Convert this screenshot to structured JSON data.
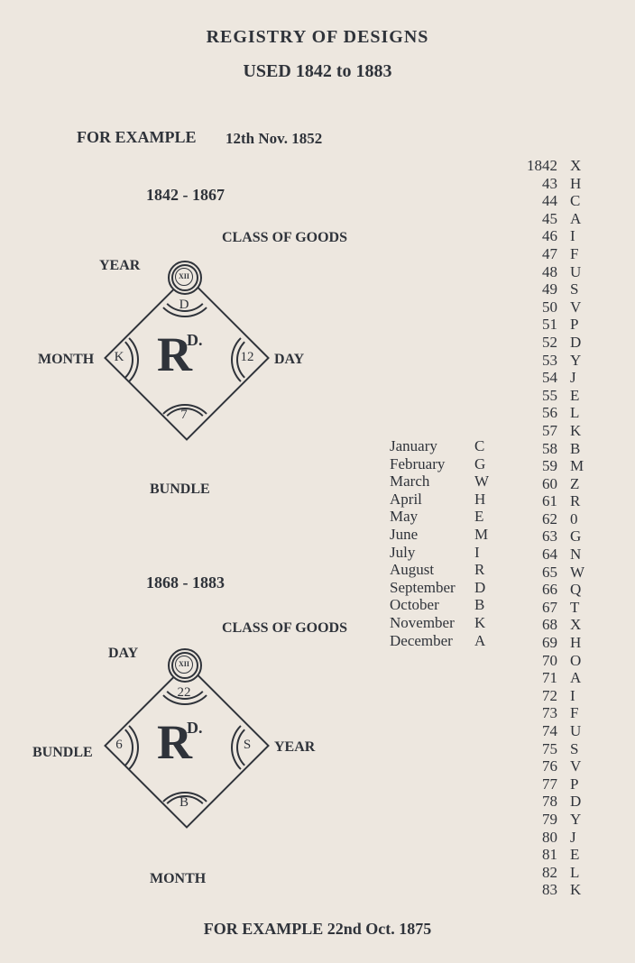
{
  "title1": "REGISTRY OF DESIGNS",
  "title2": "USED 1842 to 1883",
  "example_top_label": "FOR EXAMPLE",
  "example_top_date": "12th Nov. 1852",
  "period1": "1842 - 1867",
  "period2": "1868 - 1883",
  "example_bottom": "FOR EXAMPLE 22nd Oct. 1875",
  "diamond1": {
    "class_label": "CLASS OF GOODS",
    "top_label": "YEAR",
    "top_value": "D",
    "left_label": "MONTH",
    "left_value": "K",
    "right_label": "DAY",
    "right_value": "12",
    "bottom_label": "BUNDLE",
    "bottom_value": "7",
    "circle_value": "XII",
    "rd": "R",
    "rd_sup": "D."
  },
  "diamond2": {
    "class_label": "CLASS OF GOODS",
    "top_label": "DAY",
    "top_value": "22",
    "left_label": "BUNDLE",
    "left_value": "6",
    "right_label": "YEAR",
    "right_value": "S",
    "bottom_label": "MONTH",
    "bottom_value": "B",
    "circle_value": "XII",
    "rd": "R",
    "rd_sup": "D."
  },
  "months": [
    {
      "m": "January",
      "c": "C"
    },
    {
      "m": "February",
      "c": "G"
    },
    {
      "m": "March",
      "c": "W"
    },
    {
      "m": "April",
      "c": "H"
    },
    {
      "m": "May",
      "c": "E"
    },
    {
      "m": "June",
      "c": "M"
    },
    {
      "m": "July",
      "c": "I"
    },
    {
      "m": "August",
      "c": "R"
    },
    {
      "m": "September",
      "c": "D"
    },
    {
      "m": "October",
      "c": "B"
    },
    {
      "m": "November",
      "c": "K"
    },
    {
      "m": "December",
      "c": "A"
    }
  ],
  "years": [
    {
      "y": "1842",
      "c": "X"
    },
    {
      "y": "43",
      "c": "H"
    },
    {
      "y": "44",
      "c": "C"
    },
    {
      "y": "45",
      "c": "A"
    },
    {
      "y": "46",
      "c": "I"
    },
    {
      "y": "47",
      "c": "F"
    },
    {
      "y": "48",
      "c": "U"
    },
    {
      "y": "49",
      "c": "S"
    },
    {
      "y": "50",
      "c": "V"
    },
    {
      "y": "51",
      "c": "P"
    },
    {
      "y": "52",
      "c": "D"
    },
    {
      "y": "53",
      "c": "Y"
    },
    {
      "y": "54",
      "c": "J"
    },
    {
      "y": "55",
      "c": "E"
    },
    {
      "y": "56",
      "c": "L"
    },
    {
      "y": "57",
      "c": "K"
    },
    {
      "y": "58",
      "c": "B"
    },
    {
      "y": "59",
      "c": "M"
    },
    {
      "y": "60",
      "c": "Z"
    },
    {
      "y": "61",
      "c": "R"
    },
    {
      "y": "62",
      "c": "0"
    },
    {
      "y": "63",
      "c": "G"
    },
    {
      "y": "64",
      "c": "N"
    },
    {
      "y": "65",
      "c": "W"
    },
    {
      "y": "66",
      "c": "Q"
    },
    {
      "y": "67",
      "c": "T"
    },
    {
      "y": "68",
      "c": "X"
    },
    {
      "y": "69",
      "c": "H"
    },
    {
      "y": "70",
      "c": "O"
    },
    {
      "y": "71",
      "c": "A"
    },
    {
      "y": "72",
      "c": "I"
    },
    {
      "y": "73",
      "c": "F"
    },
    {
      "y": "74",
      "c": "U"
    },
    {
      "y": "75",
      "c": "S"
    },
    {
      "y": "76",
      "c": "V"
    },
    {
      "y": "77",
      "c": "P"
    },
    {
      "y": "78",
      "c": "D"
    },
    {
      "y": "79",
      "c": "Y"
    },
    {
      "y": "80",
      "c": "J"
    },
    {
      "y": "81",
      "c": "E"
    },
    {
      "y": "82",
      "c": "L"
    },
    {
      "y": "83",
      "c": "K"
    }
  ]
}
